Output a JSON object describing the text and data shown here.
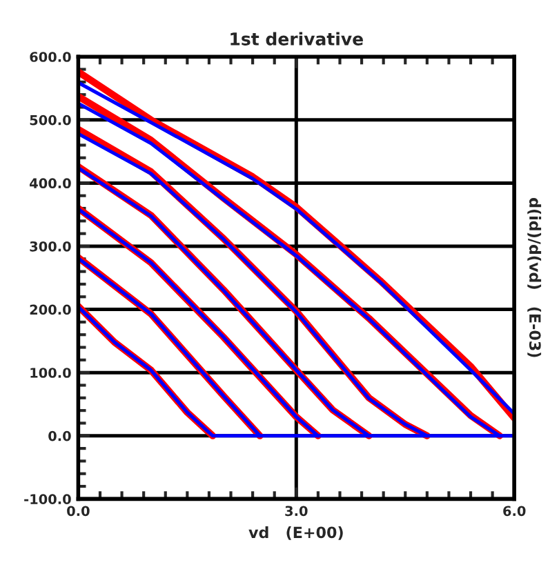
{
  "chart_data": {
    "type": "line",
    "title": "1st derivative",
    "xlabel": "vd   (E+00)",
    "ylabel": "d(id)/d(vd)   (E-03)",
    "xlim": [
      0,
      6
    ],
    "ylim": [
      -100,
      600
    ],
    "xticks": [
      {
        "value": 0,
        "label": "0.0"
      },
      {
        "value": 0.3,
        "label": null
      },
      {
        "value": 0.6,
        "label": null
      },
      {
        "value": 0.9,
        "label": null
      },
      {
        "value": 1.2,
        "label": null
      },
      {
        "value": 1.5,
        "label": null
      },
      {
        "value": 1.8,
        "label": null
      },
      {
        "value": 2.1,
        "label": null
      },
      {
        "value": 2.4,
        "label": null
      },
      {
        "value": 2.7,
        "label": null
      },
      {
        "value": 3,
        "label": "3.0"
      },
      {
        "value": 3.3,
        "label": null
      },
      {
        "value": 3.6,
        "label": null
      },
      {
        "value": 3.9,
        "label": null
      },
      {
        "value": 4.2,
        "label": null
      },
      {
        "value": 4.5,
        "label": null
      },
      {
        "value": 4.8,
        "label": null
      },
      {
        "value": 5.1,
        "label": null
      },
      {
        "value": 5.4,
        "label": null
      },
      {
        "value": 5.7,
        "label": null
      },
      {
        "value": 6,
        "label": "6.0"
      }
    ],
    "yticks": [
      {
        "value": -100,
        "label": "-100.0"
      },
      {
        "value": -80,
        "label": null
      },
      {
        "value": -60,
        "label": null
      },
      {
        "value": -40,
        "label": null
      },
      {
        "value": -20,
        "label": null
      },
      {
        "value": 0,
        "label": "0.0"
      },
      {
        "value": 20,
        "label": null
      },
      {
        "value": 40,
        "label": null
      },
      {
        "value": 60,
        "label": null
      },
      {
        "value": 80,
        "label": null
      },
      {
        "value": 100,
        "label": "100.0"
      },
      {
        "value": 120,
        "label": null
      },
      {
        "value": 140,
        "label": null
      },
      {
        "value": 160,
        "label": null
      },
      {
        "value": 180,
        "label": null
      },
      {
        "value": 200,
        "label": "200.0"
      },
      {
        "value": 220,
        "label": null
      },
      {
        "value": 240,
        "label": null
      },
      {
        "value": 260,
        "label": null
      },
      {
        "value": 280,
        "label": null
      },
      {
        "value": 300,
        "label": "300.0"
      },
      {
        "value": 320,
        "label": null
      },
      {
        "value": 340,
        "label": null
      },
      {
        "value": 360,
        "label": null
      },
      {
        "value": 380,
        "label": null
      },
      {
        "value": 400,
        "label": "400.0"
      },
      {
        "value": 420,
        "label": null
      },
      {
        "value": 440,
        "label": null
      },
      {
        "value": 460,
        "label": null
      },
      {
        "value": 480,
        "label": null
      },
      {
        "value": 500,
        "label": "500.0"
      },
      {
        "value": 520,
        "label": null
      },
      {
        "value": 540,
        "label": null
      },
      {
        "value": 560,
        "label": null
      },
      {
        "value": 580,
        "label": null
      },
      {
        "value": 600,
        "label": "600.0"
      }
    ],
    "grid": true,
    "legend": false,
    "marker": "none",
    "line_style": "solid",
    "series": [
      {
        "color": "#ff0000",
        "x": [
          0,
          1,
          2.4,
          3,
          4.15,
          5.4,
          6
        ],
        "values": [
          576,
          500,
          410,
          362,
          246,
          110,
          28
        ]
      },
      {
        "color": "#0000ff",
        "x": [
          0,
          1,
          2.4,
          3,
          4.15,
          5.4,
          6
        ],
        "values": [
          559,
          496,
          407,
          359,
          244,
          104,
          35
        ]
      },
      {
        "color": "#ff0000",
        "x": [
          0,
          1,
          2,
          3,
          4,
          5,
          5.4,
          5.8
        ],
        "values": [
          537,
          468,
          376,
          287,
          186,
          76,
          32,
          0
        ]
      },
      {
        "color": "#0000ff",
        "x": [
          0,
          1,
          2,
          3,
          4,
          5,
          5.4,
          5.8
        ],
        "values": [
          526,
          463,
          374,
          285,
          185,
          74,
          30,
          0
        ]
      },
      {
        "color": "#ff0000",
        "x": [
          0,
          1,
          2,
          3,
          4,
          4.5,
          4.8
        ],
        "values": [
          485,
          418,
          312,
          197,
          60,
          18,
          0
        ]
      },
      {
        "color": "#0000ff",
        "x": [
          0,
          1,
          2,
          3,
          4,
          4.5,
          4.8
        ],
        "values": [
          478,
          415,
          311,
          196,
          59,
          18,
          0
        ]
      },
      {
        "color": "#ff0000",
        "x": [
          0,
          1,
          2,
          3,
          3.5,
          4
        ],
        "values": [
          426,
          349,
          231,
          104,
          41,
          0
        ]
      },
      {
        "color": "#0000ff",
        "x": [
          0,
          1,
          2,
          3,
          3.5,
          4
        ],
        "values": [
          424,
          348,
          230,
          104,
          41,
          0
        ]
      },
      {
        "color": "#ff0000",
        "x": [
          0,
          1,
          2,
          3,
          3.3
        ],
        "values": [
          360,
          274,
          156,
          30,
          0
        ]
      },
      {
        "color": "#0000ff",
        "x": [
          0,
          1,
          2,
          3,
          3.3
        ],
        "values": [
          359,
          274,
          156,
          30,
          0
        ]
      },
      {
        "color": "#ff0000",
        "x": [
          0,
          1,
          2,
          2.5
        ],
        "values": [
          282,
          193,
          63,
          0
        ]
      },
      {
        "color": "#0000ff",
        "x": [
          0,
          1,
          2,
          2.5
        ],
        "values": [
          281,
          193,
          63,
          0
        ]
      },
      {
        "color": "#ff0000",
        "x": [
          0,
          0.5,
          1,
          1.5,
          1.85
        ],
        "values": [
          205,
          148,
          104,
          37,
          0
        ]
      },
      {
        "color": "#0000ff",
        "x": [
          0,
          0.5,
          1,
          1.5,
          1.85,
          6
        ],
        "values": [
          204,
          148,
          104,
          37,
          0,
          0
        ]
      }
    ]
  }
}
